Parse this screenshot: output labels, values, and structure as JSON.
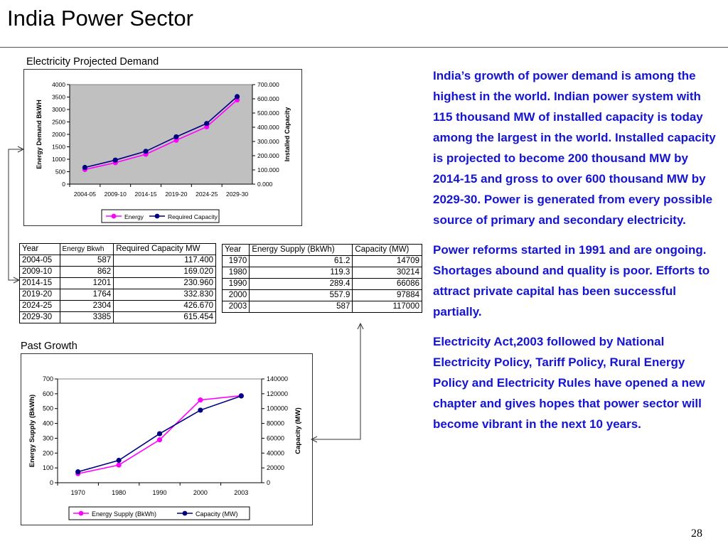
{
  "slide": {
    "title": "India Power Sector",
    "page_number": "28"
  },
  "demand_table": {
    "headers": [
      "Year",
      "Energy Bkwh",
      "Required Capacity MW"
    ],
    "rows": [
      [
        "2004-05",
        "587",
        "117.400"
      ],
      [
        "2009-10",
        "862",
        "169.020"
      ],
      [
        "2014-15",
        "1201",
        "230.960"
      ],
      [
        "2019-20",
        "1764",
        "332.830"
      ],
      [
        "2024-25",
        "2304",
        "426.670"
      ],
      [
        "2029-30",
        "3385",
        "615.454"
      ]
    ]
  },
  "growth_table": {
    "headers": [
      "Year",
      "Energy Supply (BkWh)",
      "Capacity (MW)"
    ],
    "rows": [
      [
        "1970",
        "61.2",
        "14709"
      ],
      [
        "1980",
        "119.3",
        "30214"
      ],
      [
        "1990",
        "289.4",
        "66086"
      ],
      [
        "2000",
        "557.9",
        "97884"
      ],
      [
        "2003",
        "587",
        "117000"
      ]
    ]
  },
  "text_panel": {
    "p1": "India’s growth of power demand is among the highest in the world.  Indian power system with 115 thousand MW of installed capacity is today among the largest in the world.  Installed capacity is  projected  to become 200 thousand MW by 2014-15 and gross to over 600 thousand MW by 2029-30.  Power is generated from every possible source of primary and secondary electricity.",
    "p2a": "Power reforms started in 1991 and are ongoing.",
    "p2b": "Shortages abound and quality is poor. Efforts to attract private capital has been successful partially.",
    "p3": "Electricity Act,2003 followed by National Electricity Policy, Tariff Policy, Rural Energy Policy and Electricity Rules have opened a new chapter and gives hopes that power sector will become vibrant in the next 10 years."
  },
  "chart_data": [
    {
      "type": "line",
      "title": "Electricity Projected Demand",
      "categories": [
        "2004-05",
        "2009-10",
        "2014-15",
        "2019-20",
        "2024-25",
        "2029-30"
      ],
      "ylabel": "Energy Demand BkWH",
      "y2label": "Installed Capacity",
      "ylim": [
        0,
        4000
      ],
      "y2lim": [
        0,
        700
      ],
      "yticks": [
        "0",
        "500",
        "1000",
        "1500",
        "2000",
        "2500",
        "3000",
        "3500",
        "4000"
      ],
      "y2ticks": [
        "0.000",
        "100.000",
        "200.000",
        "300.000",
        "400.000",
        "500.000",
        "600.000",
        "700.000"
      ],
      "plot_background": "#c0c0c0",
      "grid": false,
      "legend_position": "bottom",
      "series": [
        {
          "name": "Energy",
          "axis": "left",
          "color": "#ff00ff",
          "marker": "square",
          "values": [
            587,
            862,
            1201,
            1764,
            2304,
            3385
          ]
        },
        {
          "name": "Required Capacity",
          "axis": "right",
          "color": "#000080",
          "marker": "circle",
          "values": [
            117.4,
            169.02,
            230.96,
            332.83,
            426.67,
            615.454
          ]
        }
      ]
    },
    {
      "type": "line",
      "title": "Past Growth",
      "categories": [
        "1970",
        "1980",
        "1990",
        "2000",
        "2003"
      ],
      "ylabel": "Energy Supply (BkWh)",
      "y2label": "Capacity (MW)",
      "ylim": [
        0,
        700
      ],
      "y2lim": [
        0,
        140000
      ],
      "yticks": [
        "0",
        "100",
        "200",
        "300",
        "400",
        "500",
        "600",
        "700"
      ],
      "y2ticks": [
        "0",
        "20000",
        "40000",
        "60000",
        "80000",
        "100000",
        "120000",
        "140000"
      ],
      "plot_background": "#ffffff",
      "grid": false,
      "legend_position": "bottom",
      "series": [
        {
          "name": "Energy Supply (BkWh)",
          "axis": "left",
          "color": "#ff00ff",
          "marker": "square",
          "values": [
            61.2,
            119.3,
            289.4,
            557.9,
            587
          ]
        },
        {
          "name": "Capacity (MW)",
          "axis": "right",
          "color": "#000080",
          "marker": "circle",
          "values": [
            14709,
            30214,
            66086,
            97884,
            117000
          ]
        }
      ]
    }
  ]
}
